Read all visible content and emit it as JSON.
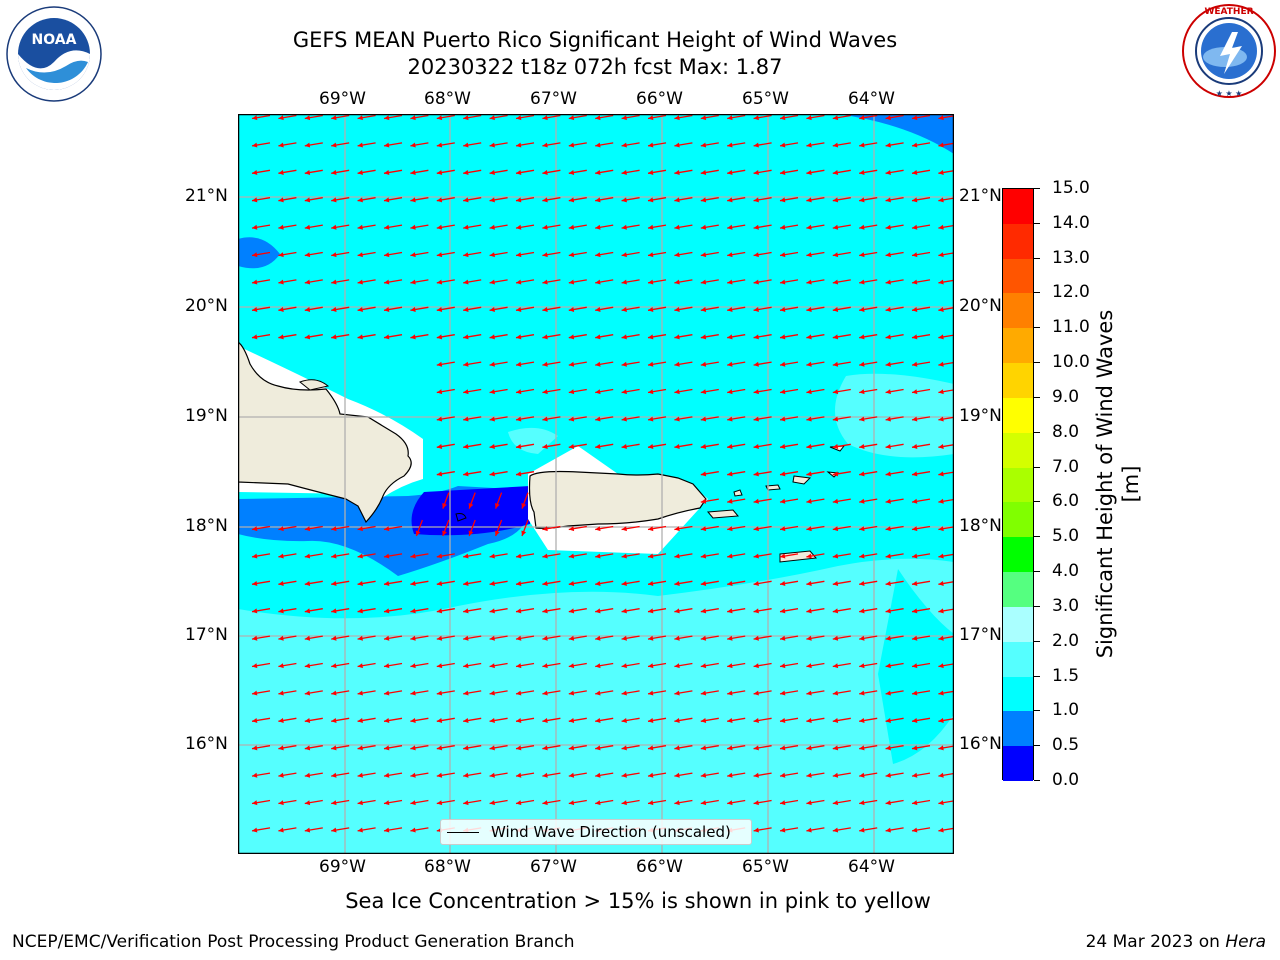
{
  "header": {
    "title_line1": "GEFS MEAN Puerto Rico Significant Height of Wind Waves",
    "title_line2": "20230322 t18z 072h fcst   Max: 1.87"
  },
  "logos": {
    "noaa_text": "NOAA",
    "noaa_ring_text": "NATIONAL OCEANIC AND ATMOSPHERIC ADMINISTRATION · U.S. DEPARTMENT OF COMMERCE",
    "nws_ring_text": "NATIONAL WEATHER SERVICE"
  },
  "map": {
    "lon_labels": [
      "69°W",
      "68°W",
      "67°W",
      "66°W",
      "65°W",
      "64°W"
    ],
    "lat_labels": [
      "21°N",
      "20°N",
      "19°N",
      "18°N",
      "17°N",
      "16°N"
    ],
    "legend_label": "Wind Wave Direction (unscaled)",
    "ocean_color": "#00ffff",
    "land_color": "#efecdc",
    "arrow_color": "#ff0000"
  },
  "colorbar": {
    "title": "Significant Height of Wind Waves [m]",
    "labels": [
      "15.0",
      "14.0",
      "13.0",
      "12.0",
      "11.0",
      "10.0",
      "9.0",
      "8.0",
      "7.0",
      "6.0",
      "5.0",
      "4.0",
      "3.0",
      "2.0",
      "1.5",
      "1.0",
      "0.5",
      "0.0"
    ],
    "colors_top_to_bottom": [
      "#ff0000",
      "#ff2a00",
      "#ff5500",
      "#ff8000",
      "#ffaa00",
      "#ffd400",
      "#ffff00",
      "#d4ff00",
      "#aaff00",
      "#80ff00",
      "#00ff00",
      "#55ff80",
      "#aaffff",
      "#55ffff",
      "#00ffff",
      "#0080ff",
      "#0000ff"
    ]
  },
  "caption": "Sea Ice Concentration > 15% is shown in pink to yellow",
  "footer": {
    "left": "NCEP/EMC/Verification Post Processing Product Generation Branch",
    "right_prefix": "24 Mar 2023 on ",
    "right_host": "Hera"
  }
}
